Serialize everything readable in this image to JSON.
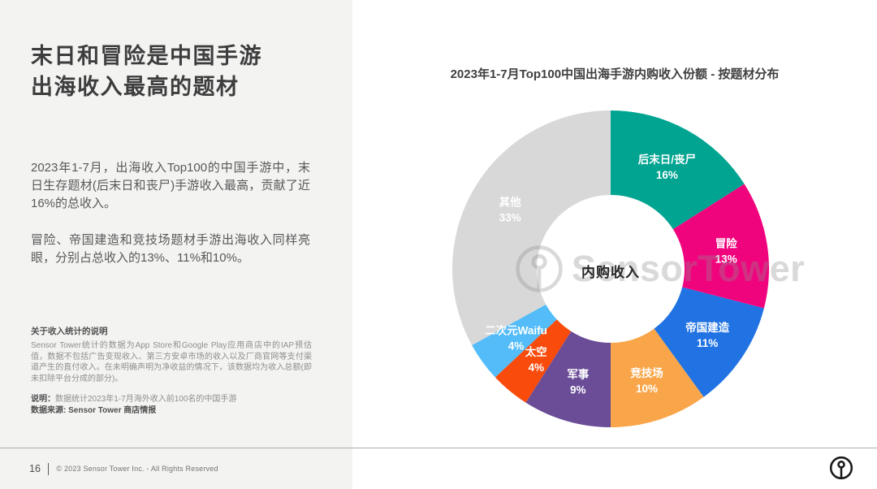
{
  "slide": {
    "title_line1": "末日和冒险是中国手游",
    "title_line2": "出海收入最高的题材",
    "paragraph1": "2023年1-7月，出海收入Top100的中国手游中，末日生存题材(后末日和丧尸)手游收入最高，贡献了近16%的总收入。",
    "paragraph2": "冒险、帝国建造和竞技场题材手游出海收入同样亮眼，分别占总收入的13%、11%和10%。",
    "notes_heading": "关于收入统计的说明",
    "notes_body": "Sensor Tower统计的数据为App Store和Google Play应用商店中的IAP预估值，数据不包括广告变现收入、第三方安卓市场的收入以及厂商官网等支付渠道产生的直付收入。在未明确声明为净收益的情况下，该数据均为收入总额(即未扣除平台分成的部分)。",
    "note_label": "说明：",
    "note_text": "数据统计2023年1-7月海外收入前100名的中国手游",
    "source_line": "数据来源: Sensor Tower 商店情报"
  },
  "chart": {
    "title": "2023年1-7月Top100中国出海手游内购收入份额 - 按题材分布",
    "center_label": "内购收入",
    "watermark_text": "SensorTower",
    "watermark_icon": "sensor-tower-ring-icon",
    "label_color": "#FFFFFF"
  },
  "chart_data": {
    "type": "pie",
    "subtype": "donut",
    "title": "2023年1-7月Top100中国出海手游内购收入份额 - 按题材分布",
    "center_label": "内购收入",
    "unit": "%",
    "start_angle_deg": 0,
    "direction": "clockwise",
    "slices": [
      {
        "label": "后末日/丧尸",
        "value": 16,
        "color": "#00A491"
      },
      {
        "label": "冒险",
        "value": 13,
        "color": "#F0047E"
      },
      {
        "label": "帝国建造",
        "value": 11,
        "color": "#2173E3"
      },
      {
        "label": "竞技场",
        "value": 10,
        "color": "#F9A64A"
      },
      {
        "label": "军事",
        "value": 9,
        "color": "#6A4C97"
      },
      {
        "label": "太空",
        "value": 4,
        "color": "#F94B0C"
      },
      {
        "label": "二次元Waifu",
        "value": 4,
        "color": "#53BCF9"
      },
      {
        "label": "其他",
        "value": 33,
        "color": "#D8D8D8"
      }
    ]
  },
  "footer": {
    "page_number": "16",
    "copyright": "© 2023 Sensor Tower Inc. - All Rights Reserved",
    "logo_icon": "sensor-tower-ring-icon"
  },
  "colors": {
    "left_panel_bg": "#F3F3F2",
    "divider": "#ACACAC",
    "title_text": "#3D3D3D",
    "body_text": "#595959",
    "notes_text": "#8F8F8F"
  }
}
